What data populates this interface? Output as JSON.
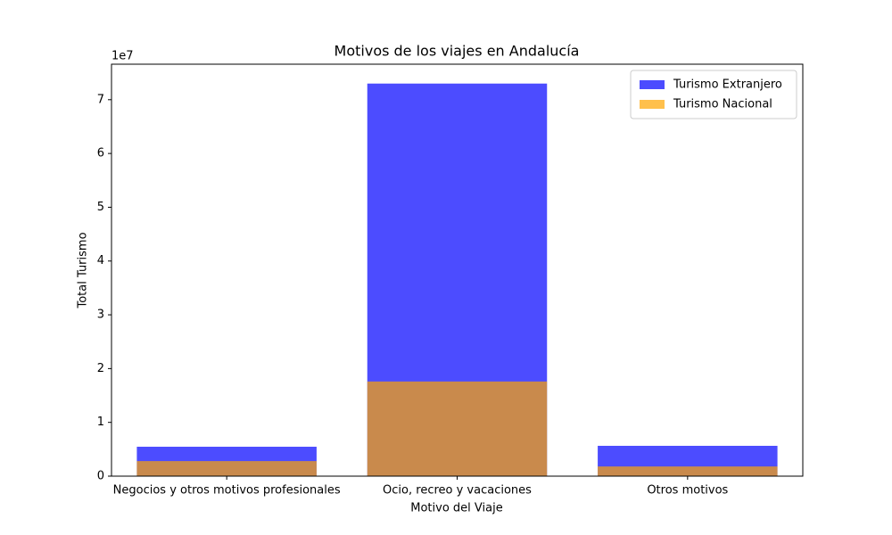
{
  "chart_data": {
    "type": "bar",
    "title": "Motivos de los viajes en Andalucía",
    "xlabel": "Motivo del Viaje",
    "ylabel": "Total Turismo",
    "y_offset_label": "1e7",
    "categories": [
      "Negocios y otros motivos profesionales",
      "Ocio, recreo y vacaciones",
      "Otros motivos"
    ],
    "series": [
      {
        "name": "Turismo Extranjero",
        "color": "#0000ff",
        "values": [
          5470000,
          73000000,
          5640000
        ]
      },
      {
        "name": "Turismo Nacional",
        "color": "#ffa500",
        "values": [
          2800000,
          17600000,
          1800000
        ]
      }
    ],
    "alpha": 0.7,
    "ylim": [
      0,
      76600000
    ],
    "yticks": [
      {
        "value": 0,
        "label": "0"
      },
      {
        "value": 10000000,
        "label": "1"
      },
      {
        "value": 20000000,
        "label": "2"
      },
      {
        "value": 30000000,
        "label": "3"
      },
      {
        "value": 40000000,
        "label": "4"
      },
      {
        "value": 50000000,
        "label": "5"
      },
      {
        "value": 60000000,
        "label": "6"
      },
      {
        "value": 70000000,
        "label": "7"
      }
    ],
    "legend": "upper right",
    "grid": false
  }
}
